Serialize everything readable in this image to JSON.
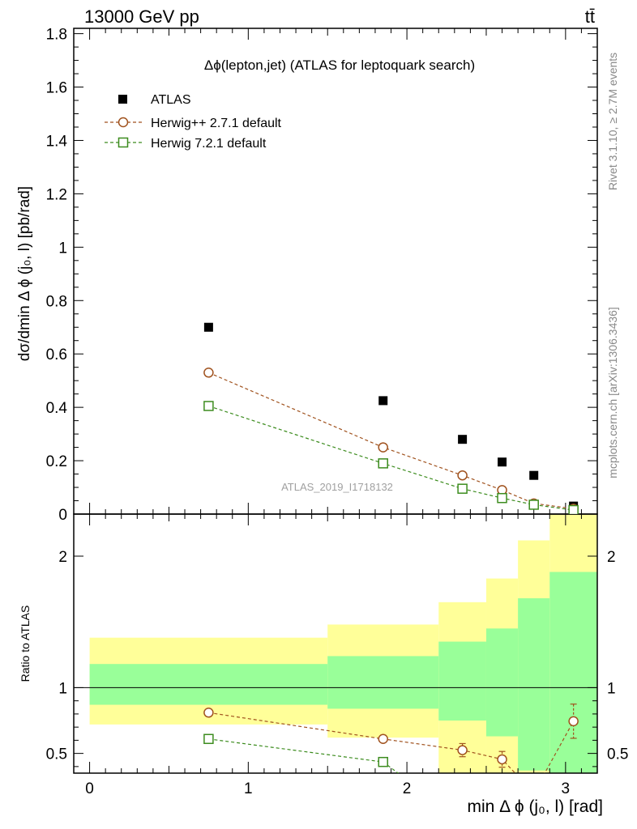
{
  "header": {
    "left_label": "13000 GeV pp",
    "right_label": "tt̄"
  },
  "side_labels": {
    "rivet": "Rivet 3.1.10, ≥ 2.7M events",
    "mcplots": "mcplots.cern.ch [arXiv:1306.3436]"
  },
  "chart_data": [
    {
      "type": "scatter",
      "title": "Δϕ(lepton,jet) (ATLAS for leptoquark search)",
      "watermark": "ATLAS_2019_I1718132",
      "ylabel": "dσ/dmin Δ ϕ (j₀, l) [pb/rad]",
      "xlim": [
        -0.1,
        3.2
      ],
      "ylim": [
        0,
        1.82
      ],
      "yticks": [
        0,
        0.2,
        0.4,
        0.6,
        0.8,
        1,
        1.2,
        1.4,
        1.6,
        1.8
      ],
      "ytick_labels": [
        "0",
        "0.2",
        "0.4",
        "0.6",
        "0.8",
        "1",
        "1.2",
        "1.4",
        "1.6",
        "1.8"
      ],
      "legend_position": "top-left",
      "series": [
        {
          "name": "ATLAS",
          "color": "#000000",
          "marker": "filled-square",
          "x": [
            0.75,
            1.85,
            2.35,
            2.6,
            2.8,
            3.05
          ],
          "y": [
            0.7,
            0.425,
            0.28,
            0.195,
            0.145,
            0.03
          ]
        },
        {
          "name": "Herwig++ 2.7.1 default",
          "color": "#a0521e",
          "marker": "open-circle",
          "x": [
            0.75,
            1.85,
            2.35,
            2.6,
            2.8,
            3.05
          ],
          "y": [
            0.53,
            0.25,
            0.145,
            0.09,
            0.04,
            0.02
          ]
        },
        {
          "name": "Herwig 7.2.1 default",
          "color": "#3c8c1e",
          "marker": "open-square",
          "x": [
            0.75,
            1.85,
            2.35,
            2.6,
            2.8,
            3.05
          ],
          "y": [
            0.405,
            0.19,
            0.095,
            0.06,
            0.035,
            0.015
          ]
        }
      ]
    },
    {
      "type": "line",
      "ylabel": "Ratio to ATLAS",
      "xlabel": "min Δ ϕ (j₀, l) [rad]",
      "xlim": [
        -0.1,
        3.2
      ],
      "ylim": [
        0.35,
        2.32
      ],
      "xticks": [
        0,
        1,
        2,
        3
      ],
      "xtick_labels": [
        "0",
        "1",
        "2",
        "3"
      ],
      "yticks": [
        0.5,
        1,
        2
      ],
      "ytick_labels": [
        "0.5",
        "1",
        "2"
      ],
      "uncertainty_bands": {
        "bins": [
          0,
          1.5,
          2.2,
          2.5,
          2.7,
          2.9,
          3.2
        ],
        "yellow_low": [
          0.72,
          0.62,
          0.35,
          0.35,
          0.35,
          0.35
        ],
        "yellow_high": [
          1.38,
          1.48,
          1.65,
          1.83,
          2.12,
          2.32
        ],
        "green_low": [
          0.87,
          0.84,
          0.75,
          0.63,
          0.37,
          0.35
        ],
        "green_high": [
          1.18,
          1.24,
          1.35,
          1.45,
          1.68,
          1.88
        ],
        "yellow_color": "#ffff99",
        "green_color": "#99ff99"
      },
      "series": [
        {
          "name": "Herwig++ 2.7.1 default",
          "color": "#a0521e",
          "marker": "open-circle",
          "x": [
            0.75,
            1.85,
            2.35,
            2.6,
            2.8,
            3.05
          ],
          "y": [
            0.81,
            0.61,
            0.525,
            0.455,
            0.2,
            0.745
          ],
          "yerr": [
            0,
            0,
            0.05,
            0.06,
            0,
            0.13
          ]
        },
        {
          "name": "Herwig 7.2.1 default",
          "color": "#3c8c1e",
          "marker": "open-square",
          "x": [
            0.75,
            1.85,
            2.0
          ],
          "y": [
            0.61,
            0.435,
            0.3
          ],
          "yerr": [
            0,
            0,
            0
          ]
        }
      ]
    }
  ]
}
